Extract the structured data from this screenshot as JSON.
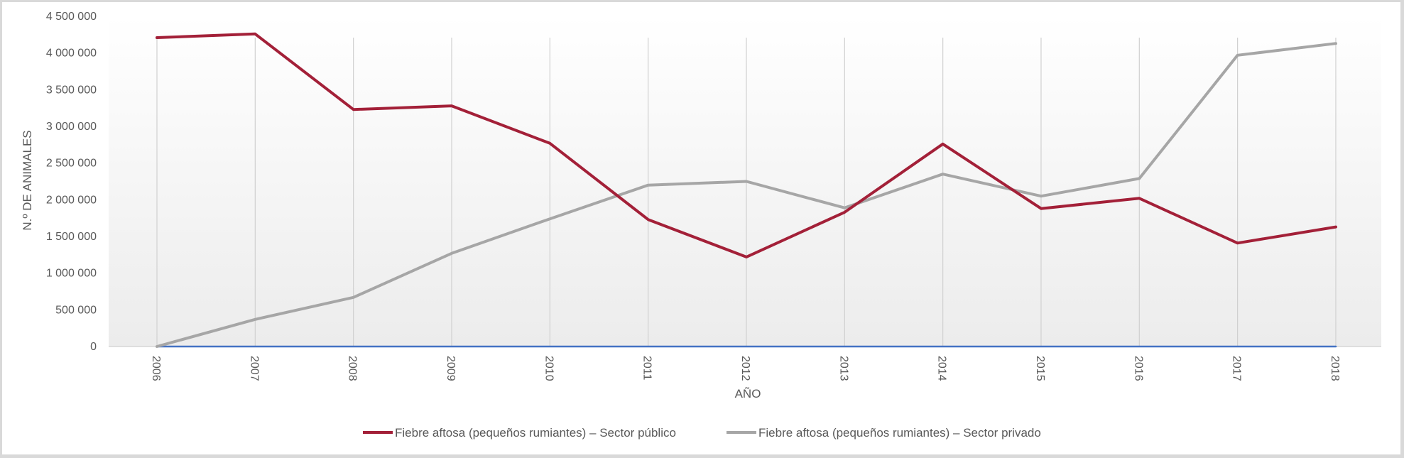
{
  "chart_data": {
    "type": "line",
    "title": "",
    "xlabel": "AÑO",
    "ylabel": "N.º DE ANIMALES",
    "categories": [
      "2006",
      "2007",
      "2008",
      "2009",
      "2010",
      "2011",
      "2012",
      "2013",
      "2014",
      "2015",
      "2016",
      "2017",
      "2018"
    ],
    "ylim": [
      0,
      4500000
    ],
    "yticks": [
      0,
      500000,
      1000000,
      1500000,
      2000000,
      2500000,
      3000000,
      3500000,
      4000000,
      4500000
    ],
    "ytick_labels": [
      "0",
      "500 000",
      "1 000 000",
      "1 500 000",
      "2 000 000",
      "2 500 000",
      "3 000 000",
      "3 500 000",
      "4 000 000",
      "4 500 000"
    ],
    "grid": "vertical",
    "legend_position": "bottom",
    "series": [
      {
        "name": "Fiebre aftosa (pequeños rumiantes) – Sector público",
        "color": "#a32038",
        "values": [
          4210000,
          4260000,
          3230000,
          3280000,
          2770000,
          1730000,
          1220000,
          1830000,
          2760000,
          1880000,
          2020000,
          1410000,
          1630000
        ]
      },
      {
        "name": "Fiebre aftosa (pequeños rumiantes) – Sector privado",
        "color": "#a6a6a6",
        "values": [
          0,
          370000,
          670000,
          1270000,
          1740000,
          2200000,
          2250000,
          1890000,
          2350000,
          2050000,
          2290000,
          3970000,
          4130000
        ]
      },
      {
        "color": "#4472c4",
        "values": [
          0,
          0,
          0,
          0,
          0,
          0,
          0,
          0,
          0,
          0,
          0,
          0,
          0
        ]
      }
    ]
  }
}
